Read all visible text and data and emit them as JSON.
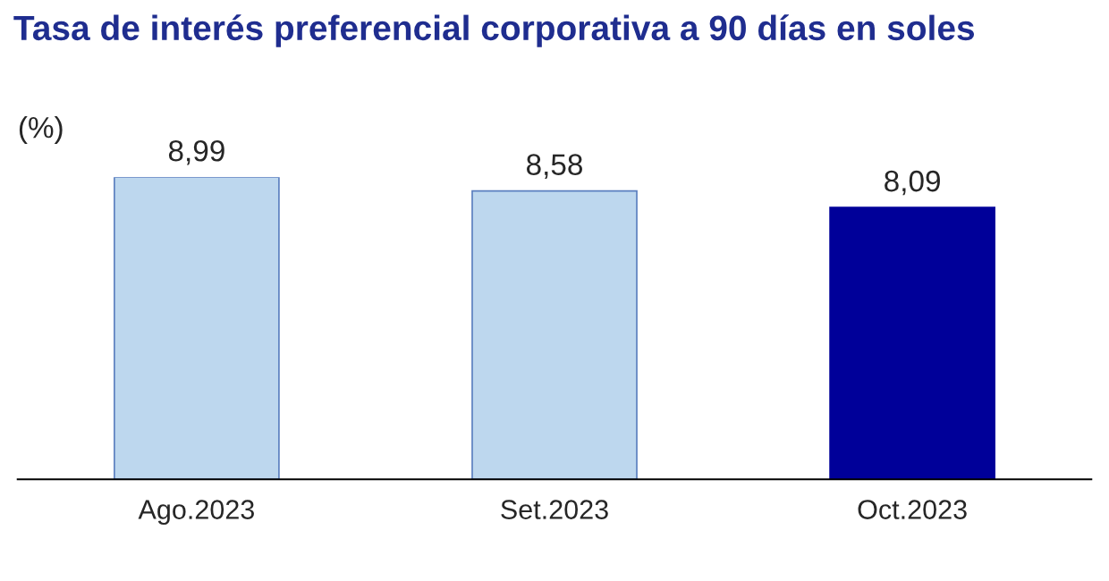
{
  "chart_data": {
    "type": "bar",
    "title": "Tasa de interés preferencial corporativa a 90 días en soles",
    "subtitle": "(%)",
    "categories": [
      "Ago.2023",
      "Set.2023",
      "Oct.2023"
    ],
    "values": [
      8.99,
      8.58,
      8.09
    ],
    "colors": [
      "#bdd7ee",
      "#bdd7ee",
      "#000099"
    ],
    "value_labels": [
      "8,99",
      "8,58",
      "8,09"
    ],
    "grid": false,
    "legend": false
  }
}
